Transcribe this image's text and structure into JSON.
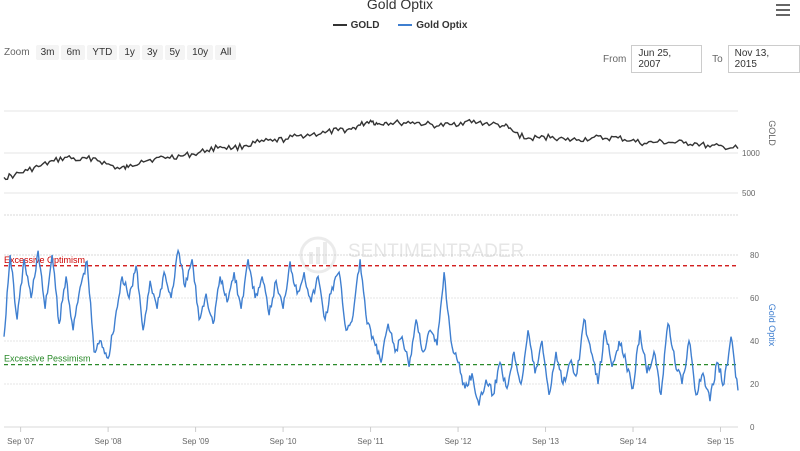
{
  "title": "Gold Optix",
  "legend": [
    {
      "name": "GOLD",
      "color": "#333333"
    },
    {
      "name": "Gold Optix",
      "color": "#3f7fd0"
    }
  ],
  "toolbar": {
    "zoom_label": "Zoom",
    "zoom_buttons": [
      "3m",
      "6m",
      "YTD",
      "1y",
      "3y",
      "5y",
      "10y",
      "All"
    ],
    "from_label": "From",
    "from_value": "Jun 25, 2007",
    "to_label": "To",
    "to_value": "Nov 13, 2015"
  },
  "watermark": "SENTIMENTRADER",
  "colors": {
    "gold": "#333333",
    "optix": "#3f7fd0",
    "optimism": "#cc0000",
    "pessimism": "#2a8a2a"
  },
  "chart_data": [
    {
      "type": "line",
      "name": "GOLD",
      "ylabel": "GOLD",
      "y_ticks": [
        500,
        1000
      ],
      "x_ticks": [
        "Sep '07",
        "Sep '08",
        "Sep '09",
        "Sep '10",
        "Sep '11",
        "Sep '12",
        "Sep '13",
        "Sep '14",
        "Sep '15"
      ],
      "x": [
        2007.48,
        2007.6,
        2007.75,
        2007.9,
        2008.05,
        2008.2,
        2008.35,
        2008.5,
        2008.65,
        2008.8,
        2008.9,
        2009.05,
        2009.2,
        2009.35,
        2009.5,
        2009.65,
        2009.8,
        2009.95,
        2010.1,
        2010.25,
        2010.4,
        2010.55,
        2010.7,
        2010.85,
        2011.0,
        2011.15,
        2011.3,
        2011.45,
        2011.55,
        2011.67,
        2011.75,
        2011.85,
        2012.0,
        2012.15,
        2012.3,
        2012.45,
        2012.6,
        2012.75,
        2012.9,
        2013.05,
        2013.2,
        2013.3,
        2013.45,
        2013.6,
        2013.75,
        2013.9,
        2014.05,
        2014.2,
        2014.35,
        2014.5,
        2014.65,
        2014.8,
        2014.95,
        2015.1,
        2015.25,
        2015.4,
        2015.55,
        2015.7,
        2015.87
      ],
      "values": [
        655,
        680,
        740,
        800,
        870,
        930,
        880,
        920,
        830,
        760,
        780,
        880,
        900,
        930,
        950,
        980,
        1050,
        1120,
        1090,
        1140,
        1210,
        1230,
        1270,
        1350,
        1380,
        1420,
        1480,
        1510,
        1620,
        1760,
        1650,
        1700,
        1680,
        1710,
        1650,
        1600,
        1640,
        1720,
        1700,
        1650,
        1600,
        1450,
        1280,
        1300,
        1330,
        1250,
        1260,
        1300,
        1290,
        1300,
        1240,
        1180,
        1210,
        1200,
        1190,
        1180,
        1110,
        1120,
        1080
      ]
    },
    {
      "type": "line",
      "name": "Gold Optix",
      "ylabel": "Gold Optix",
      "y_ticks": [
        0,
        20,
        40,
        60,
        80
      ],
      "ylim": [
        0,
        90
      ],
      "references": [
        {
          "label": "Excessive Optimism",
          "value": 75
        },
        {
          "label": "Excessive Pessimism",
          "value": 29
        }
      ],
      "x": [
        2007.48,
        2007.55,
        2007.63,
        2007.71,
        2007.79,
        2007.87,
        2007.95,
        2008.03,
        2008.11,
        2008.19,
        2008.27,
        2008.35,
        2008.43,
        2008.51,
        2008.59,
        2008.67,
        2008.75,
        2008.83,
        2008.91,
        2008.99,
        2009.07,
        2009.15,
        2009.23,
        2009.31,
        2009.39,
        2009.47,
        2009.55,
        2009.63,
        2009.71,
        2009.79,
        2009.87,
        2009.95,
        2010.03,
        2010.11,
        2010.19,
        2010.27,
        2010.35,
        2010.43,
        2010.51,
        2010.59,
        2010.67,
        2010.75,
        2010.83,
        2010.91,
        2010.99,
        2011.07,
        2011.15,
        2011.23,
        2011.31,
        2011.39,
        2011.47,
        2011.55,
        2011.63,
        2011.71,
        2011.79,
        2011.87,
        2011.95,
        2012.03,
        2012.11,
        2012.19,
        2012.27,
        2012.35,
        2012.43,
        2012.51,
        2012.59,
        2012.67,
        2012.75,
        2012.83,
        2012.91,
        2012.99,
        2013.07,
        2013.15,
        2013.23,
        2013.31,
        2013.39,
        2013.47,
        2013.55,
        2013.63,
        2013.71,
        2013.79,
        2013.87,
        2013.95,
        2014.03,
        2014.11,
        2014.19,
        2014.27,
        2014.35,
        2014.43,
        2014.51,
        2014.59,
        2014.67,
        2014.75,
        2014.83,
        2014.91,
        2014.99,
        2015.07,
        2015.15,
        2015.23,
        2015.31,
        2015.39,
        2015.47,
        2015.55,
        2015.63,
        2015.71,
        2015.79,
        2015.87
      ],
      "values": [
        42,
        80,
        50,
        78,
        60,
        82,
        55,
        80,
        48,
        70,
        45,
        65,
        77,
        35,
        40,
        32,
        50,
        70,
        60,
        75,
        45,
        68,
        55,
        72,
        60,
        82,
        65,
        78,
        50,
        62,
        48,
        70,
        58,
        72,
        55,
        78,
        60,
        70,
        52,
        68,
        55,
        77,
        62,
        72,
        58,
        70,
        50,
        65,
        72,
        45,
        52,
        78,
        48,
        40,
        30,
        48,
        35,
        42,
        28,
        50,
        35,
        45,
        38,
        72,
        40,
        30,
        18,
        25,
        10,
        22,
        15,
        30,
        18,
        35,
        20,
        45,
        25,
        40,
        15,
        35,
        20,
        30,
        25,
        50,
        35,
        20,
        45,
        28,
        40,
        30,
        18,
        45,
        25,
        35,
        15,
        48,
        30,
        20,
        40,
        15,
        25,
        12,
        30,
        20,
        42,
        17
      ]
    }
  ]
}
